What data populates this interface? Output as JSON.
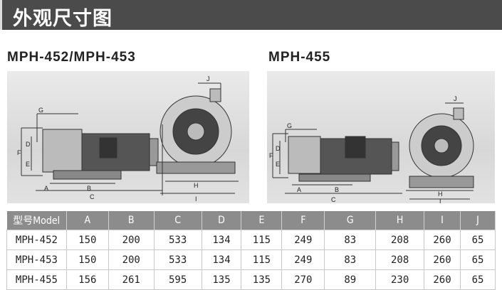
{
  "header": {
    "title": "外观尺寸图"
  },
  "drawings": [
    {
      "title": "MPH-452/MPH-453",
      "labels": [
        "A",
        "B",
        "C",
        "D",
        "E",
        "F",
        "G",
        "H",
        "I",
        "J"
      ]
    },
    {
      "title": "MPH-455",
      "labels": [
        "A",
        "B",
        "C",
        "D",
        "E",
        "F",
        "G",
        "H",
        "I",
        "J"
      ]
    }
  ],
  "table": {
    "headers": [
      "型号Model",
      "A",
      "B",
      "C",
      "D",
      "E",
      "F",
      "G",
      "H",
      "I",
      "J"
    ],
    "rows": [
      [
        "MPH-452",
        "150",
        "200",
        "533",
        "134",
        "115",
        "249",
        "83",
        "208",
        "260",
        "65"
      ],
      [
        "MPH-453",
        "150",
        "200",
        "533",
        "134",
        "115",
        "249",
        "83",
        "208",
        "260",
        "65"
      ],
      [
        "MPH-455",
        "156",
        "261",
        "595",
        "135",
        "135",
        "270",
        "89",
        "230",
        "260",
        "65"
      ]
    ]
  }
}
